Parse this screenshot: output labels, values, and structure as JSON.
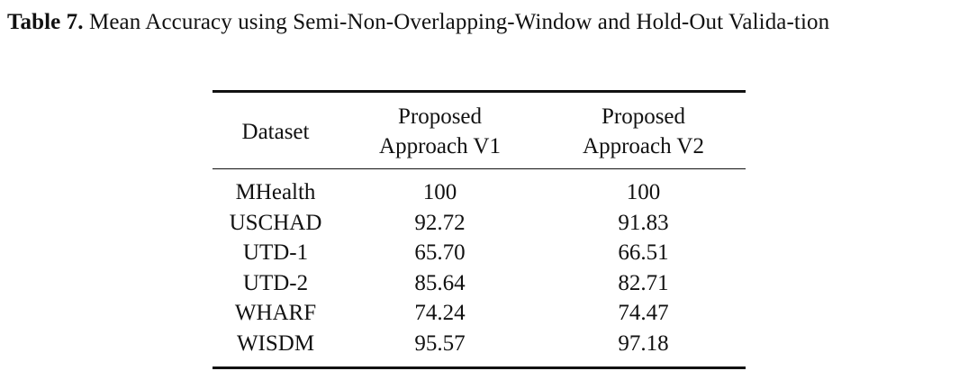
{
  "caption": {
    "label": "Table 7.",
    "text": "Mean Accuracy using Semi-Non-Overlapping-Window and Hold-Out Valida-tion"
  },
  "table": {
    "headers": {
      "dataset": "Dataset",
      "v1_line1": "Proposed",
      "v1_line2": "Approach V1",
      "v2_line1": "Proposed",
      "v2_line2": "Approach V2"
    },
    "rows": [
      {
        "dataset": "MHealth",
        "v1": "100",
        "v2": "100"
      },
      {
        "dataset": "USCHAD",
        "v1": "92.72",
        "v2": "91.83"
      },
      {
        "dataset": "UTD-1",
        "v1": "65.70",
        "v2": "66.51"
      },
      {
        "dataset": "UTD-2",
        "v1": "85.64",
        "v2": "82.71"
      },
      {
        "dataset": "WHARF",
        "v1": "74.24",
        "v2": "74.47"
      },
      {
        "dataset": "WISDM",
        "v1": "95.57",
        "v2": "97.18"
      }
    ]
  }
}
